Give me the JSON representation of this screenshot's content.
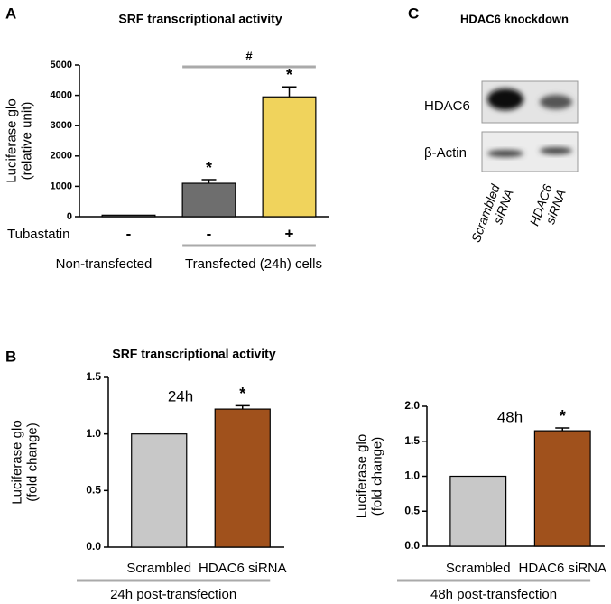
{
  "panel_labels": [
    "A",
    "B",
    "C"
  ],
  "panel_b_title": "SRF transcriptional  activity",
  "blot": {
    "title": "HDAC6 knockdown",
    "rows": [
      "HDAC6",
      "β-Actin"
    ],
    "lanes": [
      [
        "Scrambled",
        "siRNA"
      ],
      [
        "HDAC6",
        "siRNA"
      ]
    ]
  },
  "chart_data": [
    {
      "type": "bar",
      "title": "SRF transcriptional  activity",
      "ylabel": [
        "Luciferase glo",
        "(relative unit)"
      ],
      "categories": [
        "-",
        "-",
        "+"
      ],
      "row_label": "Tubastatin",
      "group_labels": [
        "Non-transfected",
        "Transfected  (24h) cells"
      ],
      "values": [
        50,
        1100,
        3950
      ],
      "errors": [
        0,
        120,
        330
      ],
      "colors": [
        "#6e6e6e",
        "#6e6e6e",
        "#f0d35c"
      ],
      "ylim": [
        0,
        5000
      ],
      "yticks": [
        0,
        1000,
        2000,
        3000,
        4000,
        5000
      ],
      "stars": [
        {
          "index": 1,
          "text": "*"
        },
        {
          "index": 2,
          "text": "*"
        }
      ],
      "bracket": {
        "from": 1,
        "to": 2,
        "text": "#"
      }
    },
    {
      "type": "bar",
      "title": "24h",
      "ylabel": [
        "Luciferase glo",
        "(fold change)"
      ],
      "categories": [
        "Scrambled",
        "HDAC6 siRNA"
      ],
      "values": [
        1.0,
        1.22
      ],
      "errors": [
        0,
        0.03
      ],
      "colors": [
        "#c8c8c8",
        "#a0511c"
      ],
      "ylim": [
        0,
        1.5
      ],
      "yticks": [
        {
          "value": 0,
          "label": "0.0"
        },
        {
          "value": 0.5,
          "label": "0.5"
        },
        {
          "value": 1,
          "label": "1.0"
        },
        {
          "value": 1.5,
          "label": "1.5"
        }
      ],
      "stars": [
        {
          "index": 1,
          "text": "*"
        }
      ],
      "footer": "24h post-transfection"
    },
    {
      "type": "bar",
      "title": "48h",
      "ylabel": [
        "Luciferase glo",
        "(fold change)"
      ],
      "categories": [
        "Scrambled",
        "HDAC6 siRNA"
      ],
      "values": [
        1.0,
        1.65
      ],
      "errors": [
        0,
        0.04
      ],
      "colors": [
        "#c8c8c8",
        "#a0511c"
      ],
      "ylim": [
        0,
        2
      ],
      "yticks": [
        {
          "value": 0,
          "label": "0.0"
        },
        {
          "value": 0.5,
          "label": "0.5"
        },
        {
          "value": 1,
          "label": "1.0"
        },
        {
          "value": 1.5,
          "label": "1.5"
        },
        {
          "value": 2,
          "label": "2.0"
        }
      ],
      "stars": [
        {
          "index": 1,
          "text": "*"
        }
      ],
      "footer": "48h post-transfection"
    }
  ]
}
